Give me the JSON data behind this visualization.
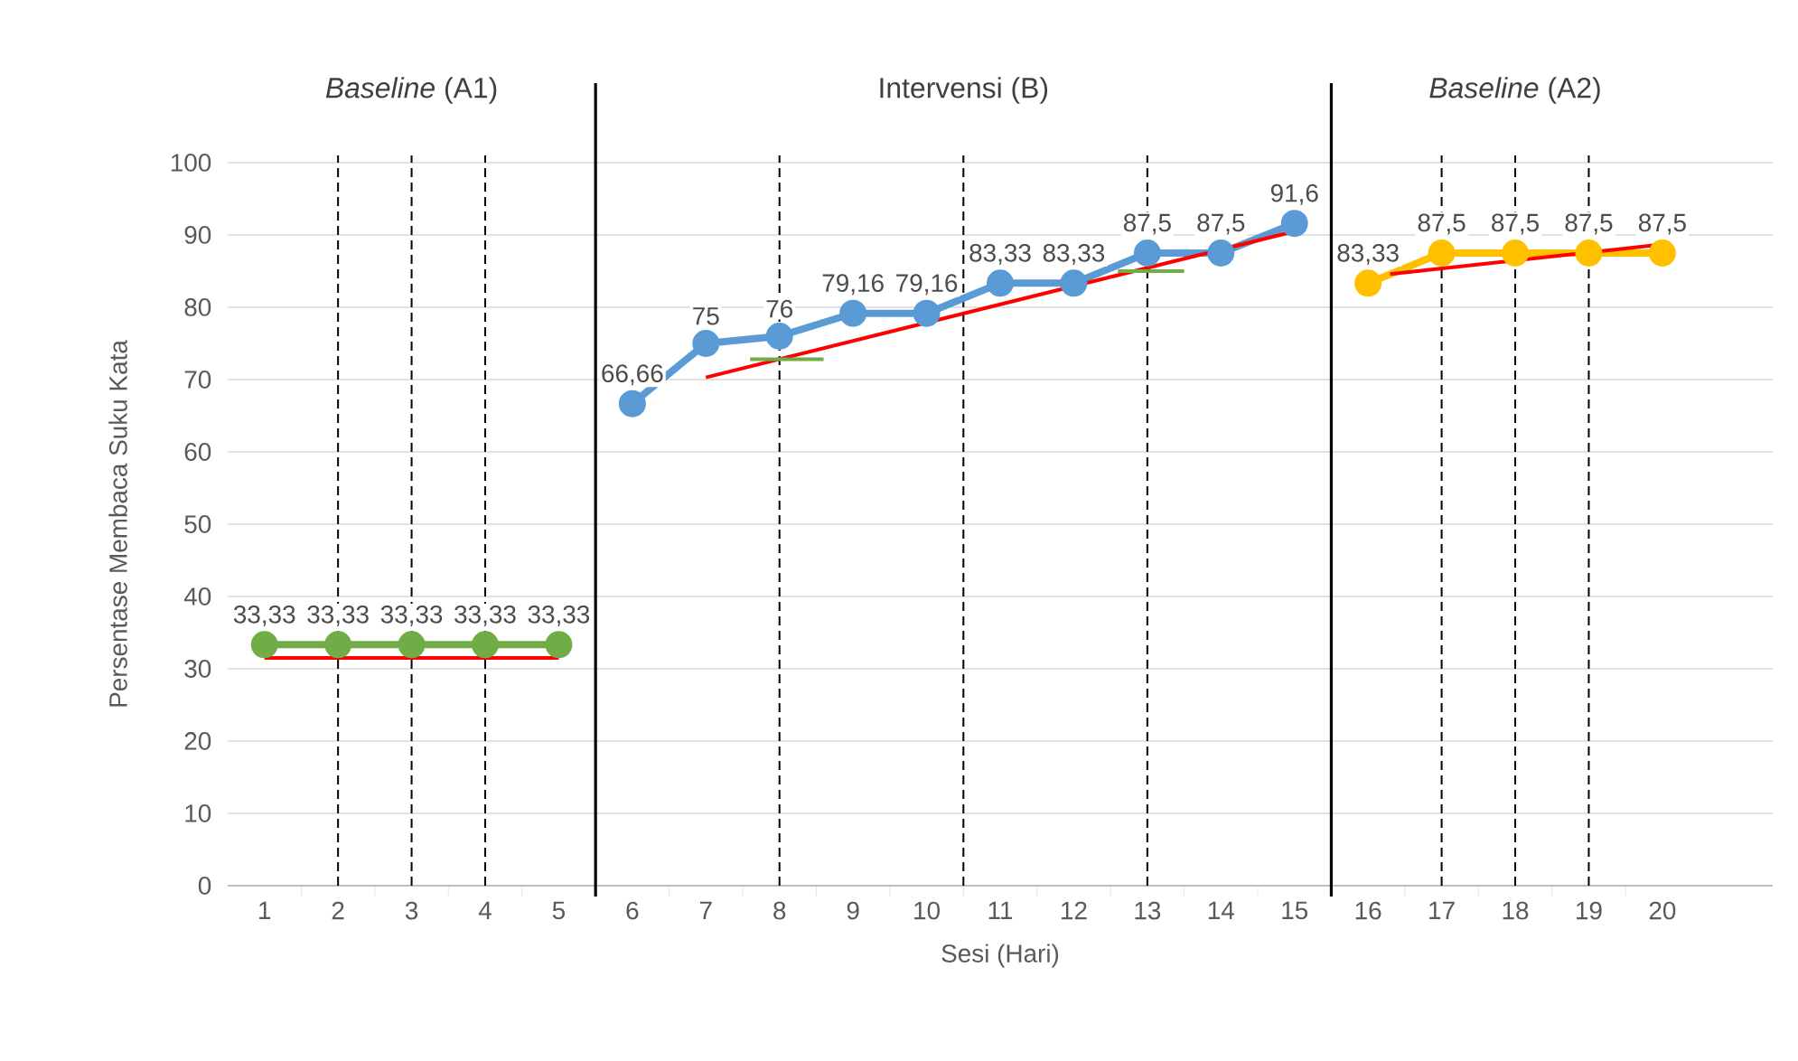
{
  "chart_data": {
    "type": "line",
    "xlabel": "Sesi (Hari)",
    "ylabel": "Persentase Membaca Suku Kata",
    "annotations": [
      "*Baseline* (A1)",
      "Intervensi (B)",
      "*Baseline* (A2)"
    ],
    "xlim": [
      0.5,
      21.5
    ],
    "xticks": [
      1,
      2,
      3,
      4,
      5,
      6,
      7,
      8,
      9,
      10,
      11,
      12,
      13,
      14,
      15,
      16,
      17,
      18,
      19,
      20
    ],
    "ylim": [
      0,
      100
    ],
    "yticks": [
      0,
      10,
      20,
      30,
      40,
      50,
      60,
      70,
      80,
      90,
      100
    ],
    "grid": "y",
    "marker": "circle",
    "series": [
      {
        "color": "#70ad47",
        "x": [
          1,
          2,
          3,
          4,
          5
        ],
        "values": [
          33.33,
          33.33,
          33.33,
          33.33,
          33.33
        ],
        "value_labels": [
          "33,33",
          "33,33",
          "33,33",
          "33,33",
          "33,33"
        ]
      },
      {
        "color": "#5b9bd5",
        "x": [
          6,
          7,
          8,
          9,
          10,
          11,
          12,
          13,
          14,
          15
        ],
        "values": [
          66.66,
          75,
          76,
          79.16,
          79.16,
          83.33,
          83.33,
          87.5,
          87.5,
          91.6
        ],
        "value_labels": [
          "66,66",
          "75",
          "76",
          "79,16",
          "79,16",
          "83,33",
          "83,33",
          "87,5",
          "87,5",
          "91,6"
        ]
      },
      {
        "color": "#ffc000",
        "x": [
          16,
          17,
          18,
          19,
          20
        ],
        "values": [
          83.33,
          87.5,
          87.5,
          87.5,
          87.5
        ],
        "value_labels": [
          "83,33",
          "87,5",
          "87,5",
          "87,5",
          "87,5"
        ]
      },
      {
        "type": "line",
        "marker": "none",
        "color": "#ff0000",
        "x": [
          1,
          5
        ],
        "values": [
          31.5,
          31.5
        ]
      },
      {
        "type": "line",
        "marker": "none",
        "color": "#ff0000",
        "x": [
          7,
          15
        ],
        "values": [
          70.3,
          90.5
        ]
      },
      {
        "type": "line",
        "marker": "none",
        "color": "#ff0000",
        "x": [
          16.3,
          20.1
        ],
        "values": [
          84.6,
          88.8
        ]
      },
      {
        "type": "line",
        "marker": "none",
        "color": "#70ad47",
        "x": [
          7.6,
          8.6
        ],
        "values": [
          72.8,
          72.8
        ]
      },
      {
        "type": "line",
        "marker": "none",
        "color": "#70ad47",
        "x": [
          12.6,
          13.5
        ],
        "values": [
          85,
          85
        ]
      }
    ],
    "ref_lines": [
      {
        "axis": "x",
        "value": 2,
        "line_style": "dashed"
      },
      {
        "axis": "x",
        "value": 3,
        "line_style": "dashed"
      },
      {
        "axis": "x",
        "value": 4,
        "line_style": "dashed"
      },
      {
        "axis": "x",
        "value": 5.5,
        "line_style": "solid"
      },
      {
        "axis": "x",
        "value": 8,
        "line_style": "dashed"
      },
      {
        "axis": "x",
        "value": 10.5,
        "line_style": "dashed"
      },
      {
        "axis": "x",
        "value": 13,
        "line_style": "dashed"
      },
      {
        "axis": "x",
        "value": 15.5,
        "line_style": "solid"
      },
      {
        "axis": "x",
        "value": 17,
        "line_style": "dashed"
      },
      {
        "axis": "x",
        "value": 18,
        "line_style": "dashed"
      },
      {
        "axis": "x",
        "value": 19,
        "line_style": "dashed"
      }
    ]
  }
}
